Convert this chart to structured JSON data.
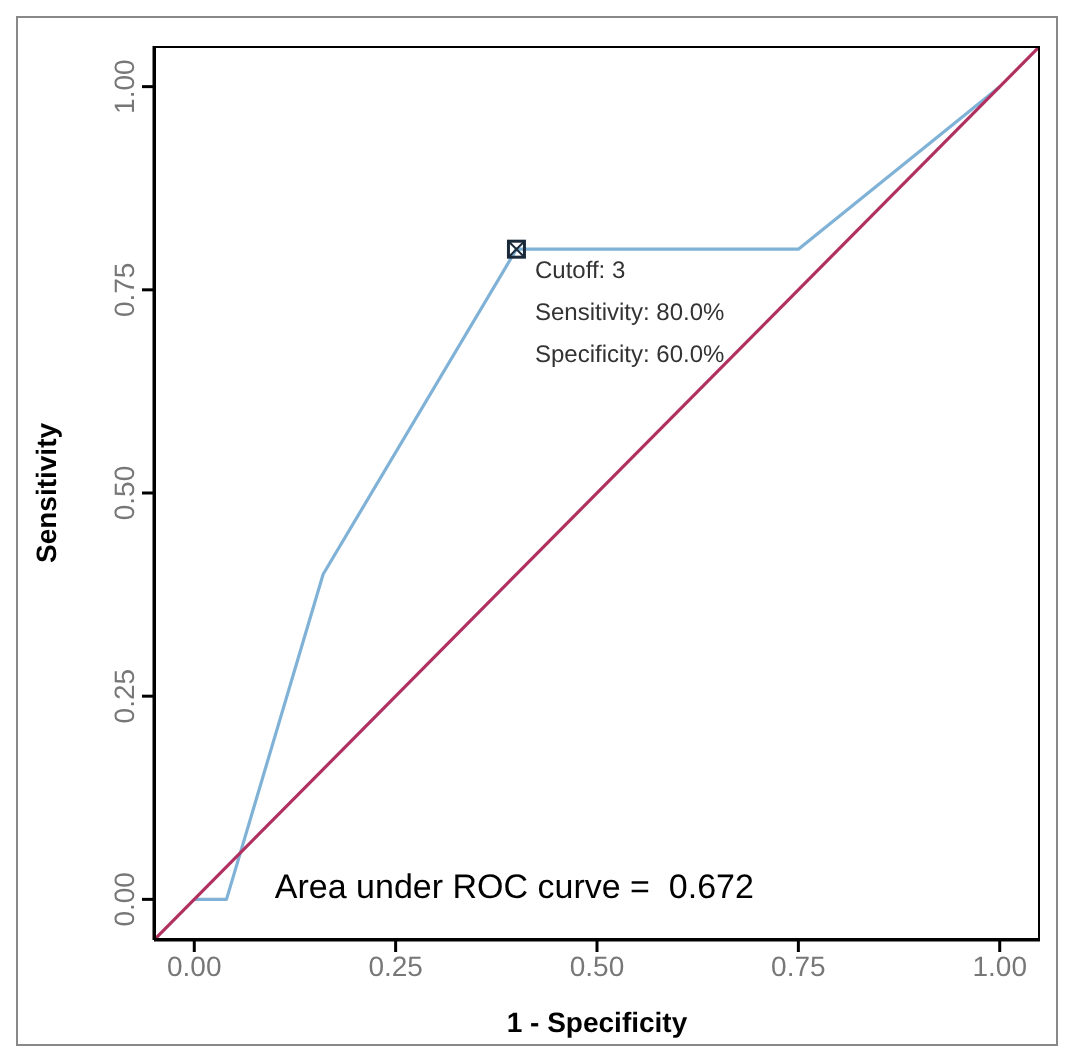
{
  "chart_data": {
    "type": "line",
    "xlabel": "1 - Specificity",
    "ylabel": "Sensitivity",
    "xlim": [
      -0.05,
      1.05
    ],
    "ylim": [
      -0.05,
      1.05
    ],
    "xticks": [
      {
        "value": 0,
        "label": "0.00"
      },
      {
        "value": 0.25,
        "label": "0.25"
      },
      {
        "value": 0.5,
        "label": "0.50"
      },
      {
        "value": 0.75,
        "label": "0.75"
      },
      {
        "value": 1,
        "label": "1.00"
      }
    ],
    "yticks": [
      {
        "value": 0,
        "label": "0.00"
      },
      {
        "value": 0.25,
        "label": "0.25"
      },
      {
        "value": 0.5,
        "label": "0.50"
      },
      {
        "value": 0.75,
        "label": "0.75"
      },
      {
        "value": 1,
        "label": "1.00"
      }
    ],
    "grid": false,
    "legend": false,
    "series": [
      {
        "color": "#7fb2d6",
        "x": [
          0,
          0.04,
          0.16,
          0.4,
          0.75,
          1
        ],
        "values": [
          0,
          0,
          0.4,
          0.8,
          0.8,
          1
        ]
      },
      {
        "color": "#b0305f",
        "x": [
          -0.05,
          1.05
        ],
        "values": [
          -0.05,
          1.05
        ]
      },
      {
        "type": "scatter",
        "color": "#1a2a3a",
        "marker": "square",
        "x": [
          0.4
        ],
        "values": [
          0.8
        ]
      }
    ],
    "annotations": [
      "Cutoff: 3",
      "Sensitivity: 80.0%",
      "Specificity: 60.0%",
      "Area under ROC curve =  0.672"
    ]
  }
}
